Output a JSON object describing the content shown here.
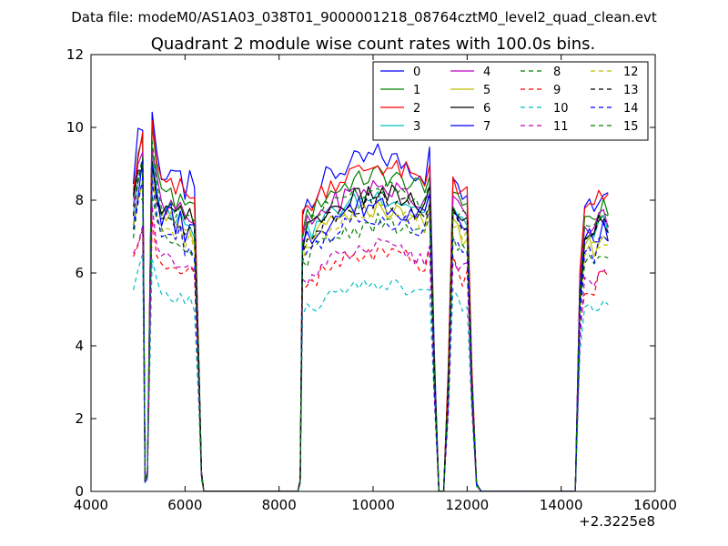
{
  "suptitle": "Data file: modeM0/AS1A03_038T01_9000001218_08764cztM0_level2_quad_clean.evt",
  "chart_data": {
    "type": "line",
    "title": "Quadrant 2 module wise count rates with 100.0s bins.",
    "xlabel": "",
    "ylabel": "",
    "x_offset_label": "+2.3225e8",
    "xlim": [
      4000,
      16000
    ],
    "ylim": [
      0,
      12
    ],
    "xticks": [
      4000,
      6000,
      8000,
      10000,
      12000,
      14000,
      16000
    ],
    "yticks": [
      0,
      2,
      4,
      6,
      8,
      10,
      12
    ],
    "grid": false,
    "legend_position": "top-right",
    "legend_columns": 4,
    "base_x": [
      4900,
      5000,
      5100,
      5150,
      5200,
      5300,
      5400,
      5500,
      5600,
      5700,
      5800,
      5900,
      6000,
      6100,
      6200,
      6300,
      6350,
      6400,
      6420,
      6500,
      7000,
      7500,
      8000,
      8400,
      8450,
      8500,
      8600,
      8700,
      8800,
      8900,
      9000,
      9100,
      9200,
      9300,
      9400,
      9500,
      9600,
      9700,
      9800,
      9900,
      10000,
      10100,
      10200,
      10300,
      10400,
      10500,
      10600,
      10700,
      10800,
      10900,
      11000,
      11100,
      11200,
      11300,
      11400,
      11500,
      11600,
      11700,
      11800,
      11900,
      12000,
      12100,
      12200,
      12300,
      12500,
      13000,
      13500,
      14000,
      14300,
      14400,
      14500,
      14600,
      14700,
      14800,
      14900,
      15000
    ],
    "base_shape": [
      8.0,
      8.8,
      9.3,
      0.3,
      0.5,
      9.5,
      8.4,
      8.0,
      7.9,
      8.0,
      7.7,
      7.8,
      7.5,
      7.7,
      7.4,
      3.0,
      0.5,
      0,
      0,
      0,
      0,
      0,
      0,
      0,
      0.3,
      7.0,
      7.3,
      7.4,
      7.5,
      7.7,
      7.8,
      7.9,
      7.95,
      8.0,
      8.1,
      8.15,
      8.2,
      8.2,
      8.25,
      8.3,
      8.35,
      8.4,
      8.35,
      8.3,
      8.3,
      8.25,
      8.2,
      8.2,
      8.1,
      8.0,
      8.0,
      7.9,
      8.4,
      3.5,
      0,
      0,
      3.0,
      8.0,
      7.8,
      7.5,
      7.6,
      3.0,
      0.2,
      0,
      0,
      0,
      0,
      0,
      0,
      5.5,
      7.2,
      7.3,
      7.2,
      7.5,
      7.6,
      7.4
    ],
    "series": [
      {
        "name": "0",
        "color": "#0000ff",
        "style": "solid",
        "scale": 1.1,
        "noise": 0.35
      },
      {
        "name": "1",
        "color": "#008000",
        "style": "solid",
        "scale": 1.04,
        "noise": 0.3
      },
      {
        "name": "2",
        "color": "#ff0000",
        "style": "solid",
        "scale": 1.07,
        "noise": 0.3
      },
      {
        "name": "3",
        "color": "#00bfbf",
        "style": "solid",
        "scale": 0.97,
        "noise": 0.25
      },
      {
        "name": "4",
        "color": "#bf00bf",
        "style": "solid",
        "scale": 1.0,
        "noise": 0.3
      },
      {
        "name": "5",
        "color": "#bfbf00",
        "style": "solid",
        "scale": 0.93,
        "noise": 0.25
      },
      {
        "name": "6",
        "color": "#000000",
        "style": "solid",
        "scale": 0.98,
        "noise": 0.3
      },
      {
        "name": "7",
        "color": "#0000ff",
        "style": "solid",
        "scale": 0.95,
        "noise": 0.35
      },
      {
        "name": "8",
        "color": "#008000",
        "style": "dashed",
        "scale": 0.88,
        "noise": 0.25
      },
      {
        "name": "9",
        "color": "#ff0000",
        "style": "dashed",
        "scale": 0.78,
        "noise": 0.25
      },
      {
        "name": "10",
        "color": "#00bfbf",
        "style": "dashed",
        "scale": 0.68,
        "noise": 0.2
      },
      {
        "name": "11",
        "color": "#bf00bf",
        "style": "dashed",
        "scale": 0.8,
        "noise": 0.25
      },
      {
        "name": "12",
        "color": "#bfbf00",
        "style": "dashed",
        "scale": 0.92,
        "noise": 0.25
      },
      {
        "name": "13",
        "color": "#000000",
        "style": "dashed",
        "scale": 0.96,
        "noise": 0.25
      },
      {
        "name": "14",
        "color": "#0000ff",
        "style": "dashed",
        "scale": 0.9,
        "noise": 0.3
      },
      {
        "name": "15",
        "color": "#008000",
        "style": "dashed",
        "scale": 1.0,
        "noise": 0.25
      }
    ]
  }
}
